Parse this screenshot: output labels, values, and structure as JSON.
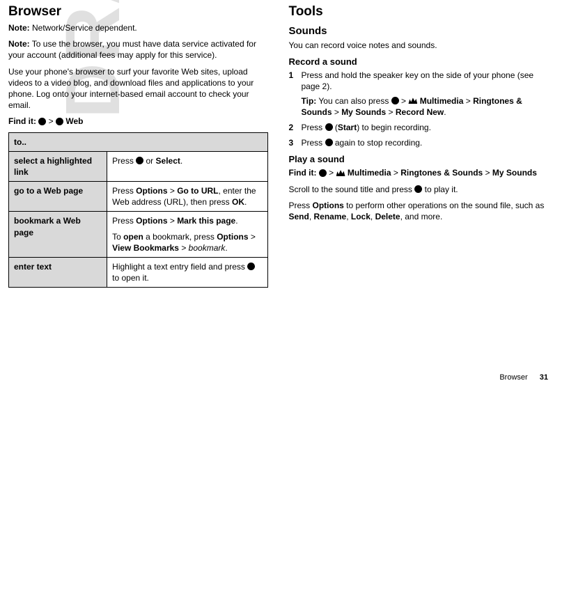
{
  "watermark": "DRAFT",
  "left": {
    "h1": "Browser",
    "note1_label": "Note:",
    "note1_text": " Network/Service dependent.",
    "note2_label": "Note:",
    "note2_text": " To use the browser, you must have data service activated for your account (additional fees may apply for this service).",
    "para1": "Use your phone's browser to surf your favorite Web sites, upload videos to a video blog, and download files and applications to your phone. Log onto your internet-based email account to check your email.",
    "findit_label": "Find it: ",
    "findit_sep": " > ",
    "findit_web": " Web",
    "table": {
      "header": "to..",
      "rows": [
        {
          "left": "select a highlighted link",
          "r_pre": "Press ",
          "r_mid": " or ",
          "r_bold": "Select",
          "r_post": "."
        },
        {
          "left": "go to a Web page",
          "r_pre": "Press ",
          "r_b1": "Options",
          "r_sep": " > ",
          "r_b2": "Go to URL",
          "r_mid": ", enter the Web address (URL), then press ",
          "r_b3": "OK",
          "r_post": "."
        },
        {
          "left": "bookmark a Web page",
          "p1_pre": "Press ",
          "p1_b1": "Options",
          "p1_sep": " > ",
          "p1_b2": "Mark this page",
          "p1_post": ".",
          "p2_pre": "To ",
          "p2_bold": "open",
          "p2_mid": " a bookmark, press ",
          "p2_b1": "Options",
          "p2_sep": " > ",
          "p2_b2": "View Bookmarks",
          "p2_sep2": " > ",
          "p2_it": "bookmark",
          "p2_post": "."
        },
        {
          "left": "enter text",
          "r_pre": "Highlight a text entry field and press ",
          "r_post": " to open it."
        }
      ]
    }
  },
  "right": {
    "h1": "Tools",
    "h2": "Sounds",
    "intro": "You can record voice notes and sounds.",
    "h3a": "Record a sound",
    "step1": "Press and hold the speaker key on the side of your phone (see page 2).",
    "tip_label": "Tip:",
    "tip_pre": " You can also press ",
    "tip_sep": " > ",
    "tip_b1": " Multimedia",
    "tip_b2": "Ringtones & Sounds",
    "tip_b3": "My Sounds",
    "tip_b4": "Record New",
    "tip_post": ".",
    "step2_pre": "Press ",
    "step2_mid": " (",
    "step2_bold": "Start",
    "step2_post": ") to begin recording.",
    "step3_pre": "Press ",
    "step3_post": " again to stop recording.",
    "h3b": "Play a sound",
    "find_label": "Find it: ",
    "find_sep": " > ",
    "find_b1": " Multimedia",
    "find_b2": "Ringtones & Sounds",
    "find_b3": "My Sounds",
    "play_pre": "Scroll to the sound title and press ",
    "play_post": " to play it.",
    "opts_pre": "Press ",
    "opts_b0": "Options",
    "opts_mid": " to perform other operations on the sound file, such as ",
    "opts_b1": "Send",
    "opts_c": ", ",
    "opts_b2": "Rename",
    "opts_b3": "Lock",
    "opts_b4": "Delete",
    "opts_post": ", and more."
  },
  "footer": {
    "label": "Browser",
    "page": "31"
  }
}
